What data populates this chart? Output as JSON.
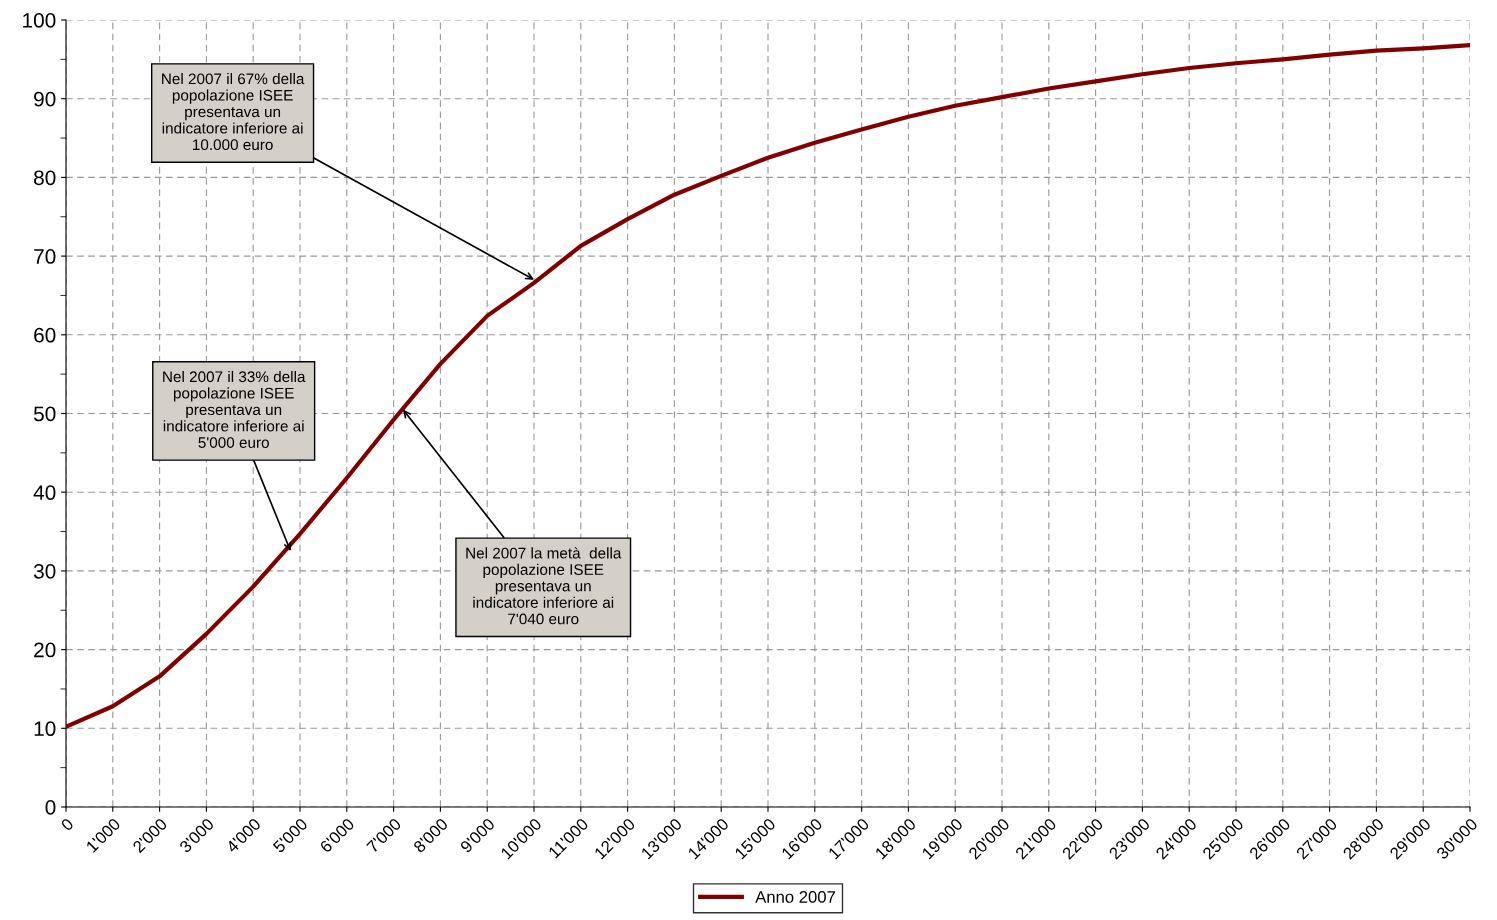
{
  "chart_data": {
    "type": "line",
    "x": [
      0,
      1000,
      2000,
      3000,
      4000,
      5000,
      6000,
      7000,
      8000,
      9000,
      10000,
      11000,
      12000,
      13000,
      14000,
      15000,
      16000,
      17000,
      18000,
      19000,
      20000,
      21000,
      22000,
      23000,
      24000,
      25000,
      26000,
      27000,
      28000,
      29000,
      30000
    ],
    "series": [
      {
        "name": "Anno 2007",
        "color": "#800000",
        "values": [
          10.2,
          12.8,
          16.6,
          22,
          28,
          34.7,
          41.8,
          49.2,
          56.3,
          62.4,
          66.6,
          71.3,
          74.7,
          77.8,
          80.2,
          82.5,
          84.4,
          86.1,
          87.7,
          89.1,
          90.2,
          91.3,
          92.2,
          93.1,
          93.9,
          94.5,
          95.0,
          95.6,
          96.1,
          96.4,
          96.8
        ]
      }
    ],
    "xlim": [
      0,
      30000
    ],
    "xticks": [
      {
        "value": 0,
        "label": "0"
      },
      {
        "value": 1000,
        "label": "1'000"
      },
      {
        "value": 2000,
        "label": "2'000"
      },
      {
        "value": 3000,
        "label": "3'000"
      },
      {
        "value": 4000,
        "label": "4'000"
      },
      {
        "value": 5000,
        "label": "5'000"
      },
      {
        "value": 6000,
        "label": "6'000"
      },
      {
        "value": 7000,
        "label": "7'000"
      },
      {
        "value": 8000,
        "label": "8'000"
      },
      {
        "value": 9000,
        "label": "9'000"
      },
      {
        "value": 10000,
        "label": "10'000"
      },
      {
        "value": 11000,
        "label": "11'000"
      },
      {
        "value": 12000,
        "label": "12'000"
      },
      {
        "value": 13000,
        "label": "13'000"
      },
      {
        "value": 14000,
        "label": "14'000"
      },
      {
        "value": 15000,
        "label": "15'000"
      },
      {
        "value": 16000,
        "label": "16'000"
      },
      {
        "value": 17000,
        "label": "17'000"
      },
      {
        "value": 18000,
        "label": "18'000"
      },
      {
        "value": 19000,
        "label": "19'000"
      },
      {
        "value": 20000,
        "label": "20'000"
      },
      {
        "value": 21000,
        "label": "21'000"
      },
      {
        "value": 22000,
        "label": "22'000"
      },
      {
        "value": 23000,
        "label": "23'000"
      },
      {
        "value": 24000,
        "label": "24'000"
      },
      {
        "value": 25000,
        "label": "25'000"
      },
      {
        "value": 26000,
        "label": "26'000"
      },
      {
        "value": 27000,
        "label": "27'000"
      },
      {
        "value": 28000,
        "label": "28'000"
      },
      {
        "value": 29000,
        "label": "29'000"
      },
      {
        "value": 30000,
        "label": "30'000"
      }
    ],
    "ylim": [
      0,
      100
    ],
    "yticks": [
      0,
      10,
      20,
      30,
      40,
      50,
      60,
      70,
      80,
      90,
      100
    ],
    "grid": true,
    "legend": "bottom",
    "marker": "none",
    "line_style": "solid",
    "annotations": [
      {
        "text": "Nel 2007 il 67% della\npopolazione ISEE\npresentava un\nindicatore inferiore ai\n10.000 euro",
        "x": 10000,
        "y": 67
      },
      {
        "text": "Nel 2007 il 33% della\npopolazione ISEE\npresentava un\nindicatore inferiore ai\n5'000 euro",
        "x": 4800,
        "y": 32.5
      },
      {
        "text": "Nel 2007 la metà  della\npopolazione ISEE\npresentava un\nindicatore inferiore ai\n7'040 euro",
        "x": 7200,
        "y": 50.5
      }
    ]
  }
}
